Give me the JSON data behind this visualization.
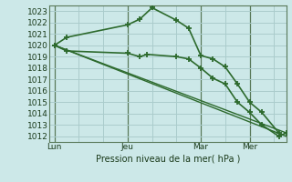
{
  "bg_color": "#cce8e8",
  "grid_color": "#aacccc",
  "line_color": "#2d6a2d",
  "xlabel": "Pression niveau de la mer( hPa )",
  "ylim": [
    1011.5,
    1023.5
  ],
  "yticks": [
    1012,
    1013,
    1014,
    1015,
    1016,
    1017,
    1018,
    1019,
    1020,
    1021,
    1022,
    1023
  ],
  "xtick_labels": [
    "Lun",
    "Jeu",
    "Mar",
    "Mer"
  ],
  "xtick_positions": [
    0,
    30,
    60,
    80
  ],
  "xlim": [
    -2,
    95
  ],
  "vlines": [
    0,
    30,
    60,
    80
  ],
  "lines": [
    {
      "x": [
        0,
        5,
        30,
        35,
        40,
        50,
        55,
        60,
        65,
        70,
        75,
        80,
        85,
        92
      ],
      "y": [
        1020.0,
        1020.7,
        1021.8,
        1022.3,
        1023.3,
        1022.2,
        1021.5,
        1019.1,
        1018.8,
        1018.1,
        1016.6,
        1015.0,
        1014.1,
        1012.3
      ],
      "marker": "+",
      "lw": 1.2,
      "ms": 4,
      "mew": 1.3
    },
    {
      "x": [
        0,
        5,
        30,
        35,
        38,
        50,
        55,
        60,
        65,
        70,
        75,
        80,
        85,
        92,
        95
      ],
      "y": [
        1020.0,
        1019.5,
        1019.3,
        1019.0,
        1019.2,
        1019.0,
        1018.8,
        1018.0,
        1017.1,
        1016.6,
        1015.0,
        1014.1,
        1013.0,
        1012.0,
        1012.3
      ],
      "marker": "+",
      "lw": 1.2,
      "ms": 4,
      "mew": 1.3
    },
    {
      "x": [
        0,
        95
      ],
      "y": [
        1020.0,
        1012.0
      ],
      "marker": null,
      "lw": 1.0,
      "ms": 0,
      "mew": 0
    },
    {
      "x": [
        0,
        95
      ],
      "y": [
        1020.0,
        1012.3
      ],
      "marker": null,
      "lw": 1.0,
      "ms": 0,
      "mew": 0
    }
  ]
}
